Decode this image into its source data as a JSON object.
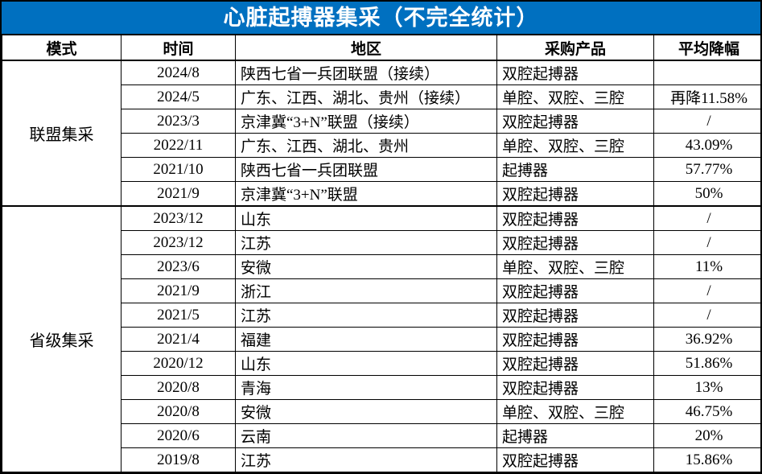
{
  "colors": {
    "title_bg": "#0070C0",
    "title_text": "#FFFFFF",
    "border": "#000000",
    "body_bg": "#FFFFFF"
  },
  "chart_data": {
    "type": "table",
    "title": "心脏起搏器集采（不完全统计）",
    "columns": [
      "模式",
      "时间",
      "地区",
      "采购产品",
      "平均降幅"
    ],
    "groups": [
      {
        "mode": "联盟集采",
        "rows": [
          {
            "time": "2024/8",
            "region": "陕西七省一兵团联盟（接续）",
            "product": "双腔起搏器",
            "reduction": ""
          },
          {
            "time": "2024/5",
            "region": "广东、江西、湖北、贵州（接续）",
            "product": "单腔、双腔、三腔",
            "reduction": "再降11.58%"
          },
          {
            "time": "2023/3",
            "region": "京津冀“3+N”联盟（接续）",
            "product": "双腔起搏器",
            "reduction": "/"
          },
          {
            "time": "2022/11",
            "region": "广东、江西、湖北、贵州",
            "product": "单腔、双腔、三腔",
            "reduction": "43.09%"
          },
          {
            "time": "2021/10",
            "region": "陕西七省一兵团联盟",
            "product": "起搏器",
            "reduction": "57.77%"
          },
          {
            "time": "2021/9",
            "region": "京津冀“3+N”联盟",
            "product": "双腔起搏器",
            "reduction": "50%"
          }
        ]
      },
      {
        "mode": "省级集采",
        "rows": [
          {
            "time": "2023/12",
            "region": "山东",
            "product": "双腔起搏器",
            "reduction": "/"
          },
          {
            "time": "2023/12",
            "region": "江苏",
            "product": "双腔起搏器",
            "reduction": "/"
          },
          {
            "time": "2023/6",
            "region": "安微",
            "product": "单腔、双腔、三腔",
            "reduction": "11%"
          },
          {
            "time": "2021/9",
            "region": "浙江",
            "product": "双腔起搏器",
            "reduction": "/"
          },
          {
            "time": "2021/5",
            "region": "江苏",
            "product": "双腔起搏器",
            "reduction": "/"
          },
          {
            "time": "2021/4",
            "region": "福建",
            "product": "双腔起搏器",
            "reduction": "36.92%"
          },
          {
            "time": "2020/12",
            "region": "山东",
            "product": "双腔起搏器",
            "reduction": "51.86%"
          },
          {
            "time": "2020/8",
            "region": "青海",
            "product": "双腔起搏器",
            "reduction": "13%"
          },
          {
            "time": "2020/8",
            "region": "安微",
            "product": "单腔、双腔、三腔",
            "reduction": "46.75%"
          },
          {
            "time": "2020/6",
            "region": "云南",
            "product": "起搏器",
            "reduction": "20%"
          },
          {
            "time": "2019/8",
            "region": "江苏",
            "product": "双腔起搏器",
            "reduction": "15.86%"
          }
        ]
      }
    ]
  }
}
